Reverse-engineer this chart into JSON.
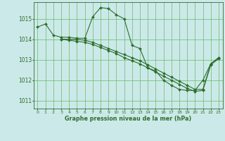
{
  "title": "Graphe pression niveau de la mer (hPa)",
  "background_color": "#cce9e9",
  "grid_color": "#66bb66",
  "line_color": "#2d6e2d",
  "xlim": [
    -0.5,
    23.5
  ],
  "ylim": [
    1010.6,
    1015.8
  ],
  "yticks": [
    1011,
    1012,
    1013,
    1014,
    1015
  ],
  "xticks": [
    0,
    1,
    2,
    3,
    4,
    5,
    6,
    7,
    8,
    9,
    10,
    11,
    12,
    13,
    14,
    15,
    16,
    17,
    18,
    19,
    20,
    21,
    22,
    23
  ],
  "line1_x": [
    0,
    1,
    2,
    3,
    4,
    5,
    6,
    7,
    8,
    9,
    10,
    11,
    12,
    13,
    14,
    15,
    16,
    17,
    18,
    19,
    20,
    21,
    22,
    23
  ],
  "line1_y": [
    1014.6,
    1014.75,
    1014.2,
    1014.1,
    1014.1,
    1014.05,
    1014.05,
    1015.1,
    1015.55,
    1015.5,
    1015.2,
    1015.0,
    1013.7,
    1013.55,
    1012.6,
    1012.45,
    1012.0,
    1011.75,
    1011.55,
    1011.5,
    1011.5,
    1012.0,
    1012.8,
    1013.1
  ],
  "line2_x": [
    3,
    4,
    5,
    6,
    7,
    8,
    9,
    10,
    11,
    12,
    13,
    14,
    15,
    16,
    17,
    18,
    19,
    20,
    21,
    22,
    23
  ],
  "line2_y": [
    1014.0,
    1014.0,
    1014.0,
    1013.95,
    1013.85,
    1013.7,
    1013.55,
    1013.4,
    1013.25,
    1013.1,
    1012.95,
    1012.75,
    1012.55,
    1012.35,
    1012.15,
    1011.95,
    1011.75,
    1011.55,
    1011.55,
    1012.8,
    1013.1
  ],
  "line3_x": [
    3,
    4,
    5,
    6,
    7,
    8,
    9,
    10,
    11,
    12,
    13,
    14,
    15,
    16,
    17,
    18,
    19,
    20,
    21,
    22,
    23
  ],
  "line3_y": [
    1014.0,
    1013.95,
    1013.9,
    1013.85,
    1013.75,
    1013.6,
    1013.45,
    1013.3,
    1013.1,
    1012.95,
    1012.8,
    1012.6,
    1012.4,
    1012.2,
    1012.0,
    1011.8,
    1011.6,
    1011.45,
    1011.5,
    1012.75,
    1013.05
  ],
  "marker": "D",
  "marker_size": 2.0,
  "lw": 0.8
}
